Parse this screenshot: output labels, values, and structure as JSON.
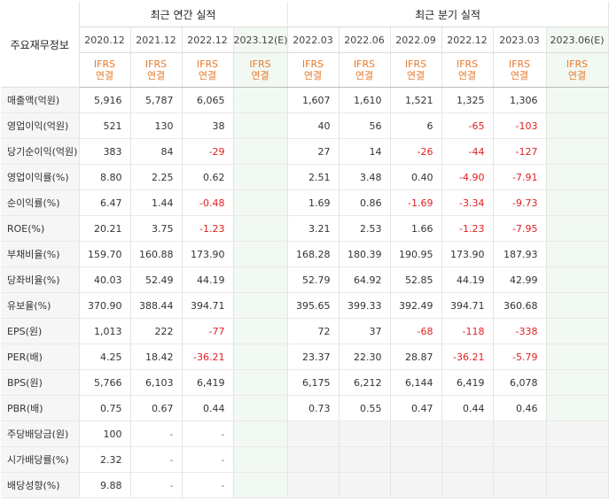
{
  "header": {
    "row_label": "주요재무정보",
    "annual_group": "최근 연간 실적",
    "quarter_group": "최근 분기 실적",
    "periods": [
      "2020.12",
      "2021.12",
      "2022.12",
      "2023.12(E)",
      "2022.03",
      "2022.06",
      "2022.09",
      "2022.12",
      "2023.03",
      "2023.06(E)"
    ],
    "ifrs_top": "IFRS",
    "ifrs_bottom": "연결"
  },
  "rows": [
    {
      "label": "매출액(억원)",
      "cells": [
        "5,916",
        "5,787",
        "6,065",
        "",
        "1,607",
        "1,610",
        "1,521",
        "1,325",
        "1,306",
        ""
      ]
    },
    {
      "label": "영업이익(억원)",
      "cells": [
        "521",
        "130",
        "38",
        "",
        "40",
        "56",
        "6",
        "-65",
        "-103",
        ""
      ]
    },
    {
      "label": "당기순이익(억원)",
      "cells": [
        "383",
        "84",
        "-29",
        "",
        "27",
        "14",
        "-26",
        "-44",
        "-127",
        ""
      ]
    },
    {
      "label": "영업이익률(%)",
      "cells": [
        "8.80",
        "2.25",
        "0.62",
        "",
        "2.51",
        "3.48",
        "0.40",
        "-4.90",
        "-7.91",
        ""
      ]
    },
    {
      "label": "순이익률(%)",
      "cells": [
        "6.47",
        "1.44",
        "-0.48",
        "",
        "1.69",
        "0.86",
        "-1.69",
        "-3.34",
        "-9.73",
        ""
      ]
    },
    {
      "label": "ROE(%)",
      "cells": [
        "20.21",
        "3.75",
        "-1.23",
        "",
        "3.21",
        "2.53",
        "1.66",
        "-1.23",
        "-7.95",
        ""
      ]
    },
    {
      "label": "부채비율(%)",
      "cells": [
        "159.70",
        "160.88",
        "173.90",
        "",
        "168.28",
        "180.39",
        "190.95",
        "173.90",
        "187.93",
        ""
      ]
    },
    {
      "label": "당좌비율(%)",
      "cells": [
        "40.03",
        "52.49",
        "44.19",
        "",
        "52.79",
        "64.92",
        "52.85",
        "44.19",
        "42.99",
        ""
      ]
    },
    {
      "label": "유보율(%)",
      "cells": [
        "370.90",
        "388.44",
        "394.71",
        "",
        "395.65",
        "399.33",
        "392.49",
        "394.71",
        "360.68",
        ""
      ]
    },
    {
      "label": "EPS(원)",
      "cells": [
        "1,013",
        "222",
        "-77",
        "",
        "72",
        "37",
        "-68",
        "-118",
        "-338",
        ""
      ]
    },
    {
      "label": "PER(배)",
      "cells": [
        "4.25",
        "18.42",
        "-36.21",
        "",
        "23.37",
        "22.30",
        "28.87",
        "-36.21",
        "-5.79",
        ""
      ]
    },
    {
      "label": "BPS(원)",
      "cells": [
        "5,766",
        "6,103",
        "6,419",
        "",
        "6,175",
        "6,212",
        "6,144",
        "6,419",
        "6,078",
        ""
      ]
    },
    {
      "label": "PBR(배)",
      "cells": [
        "0.75",
        "0.67",
        "0.44",
        "",
        "0.73",
        "0.55",
        "0.47",
        "0.44",
        "0.46",
        ""
      ]
    },
    {
      "label": "주당배당금(원)",
      "cells": [
        "100",
        "-",
        "-",
        "",
        "",
        "",
        "",
        "",
        "",
        ""
      ]
    },
    {
      "label": "시가배당률(%)",
      "cells": [
        "2.32",
        "-",
        "-",
        "",
        "",
        "",
        "",
        "",
        "",
        ""
      ]
    },
    {
      "label": "배당성향(%)",
      "cells": [
        "9.88",
        "-",
        "-",
        "",
        "",
        "",
        "",
        "",
        "",
        ""
      ]
    }
  ],
  "colors": {
    "negative": "#e02020",
    "ifrs": "#e87a2c",
    "estimate_bg": "#f2f8f2",
    "label_bg": "#f6f6f6"
  }
}
